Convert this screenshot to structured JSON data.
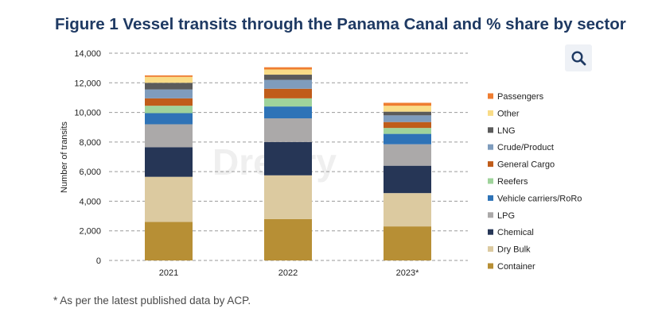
{
  "chart_data": {
    "type": "bar",
    "stacked": true,
    "title": "Figure 1 Vessel transits through the Panama Canal and % share by sector",
    "xlabel": "",
    "ylabel": "Number of transits",
    "ylim": [
      0,
      14000
    ],
    "yticks": [
      0,
      2000,
      4000,
      6000,
      8000,
      10000,
      12000,
      14000
    ],
    "ytick_labels": [
      "0",
      "2,000",
      "4,000",
      "6,000",
      "8,000",
      "10,000",
      "12,000",
      "14,000"
    ],
    "grid": true,
    "legend_position": "right",
    "categories": [
      "2021",
      "2022",
      "2023*"
    ],
    "series": [
      {
        "name": "Container",
        "color": "#b78f35",
        "values": [
          2600,
          2800,
          2300
        ]
      },
      {
        "name": "Dry Bulk",
        "color": "#dccaa0",
        "values": [
          3050,
          2950,
          2250
        ]
      },
      {
        "name": "Chemical",
        "color": "#263656",
        "values": [
          2000,
          2250,
          1850
        ]
      },
      {
        "name": "LPG",
        "color": "#aba9a9",
        "values": [
          1550,
          1600,
          1450
        ]
      },
      {
        "name": "Vehicle carriers/RoRo",
        "color": "#2e73b7",
        "values": [
          750,
          800,
          700
        ]
      },
      {
        "name": "Reefers",
        "color": "#9fd39b",
        "values": [
          500,
          550,
          400
        ]
      },
      {
        "name": "General Cargo",
        "color": "#c05c1a",
        "values": [
          500,
          650,
          400
        ]
      },
      {
        "name": "Crude/Product",
        "color": "#7f9cbd",
        "values": [
          600,
          600,
          450
        ]
      },
      {
        "name": "LNG",
        "color": "#5b5b5b",
        "values": [
          450,
          350,
          250
        ]
      },
      {
        "name": "Other",
        "color": "#f9dc87",
        "values": [
          400,
          350,
          400
        ]
      },
      {
        "name": "Passengers",
        "color": "#ef7d31",
        "values": [
          100,
          150,
          200
        ]
      }
    ],
    "watermark": "Drewry"
  },
  "footnote": "* As per the latest published data by ACP.",
  "toolbar": {
    "search_icon": "search-icon"
  }
}
